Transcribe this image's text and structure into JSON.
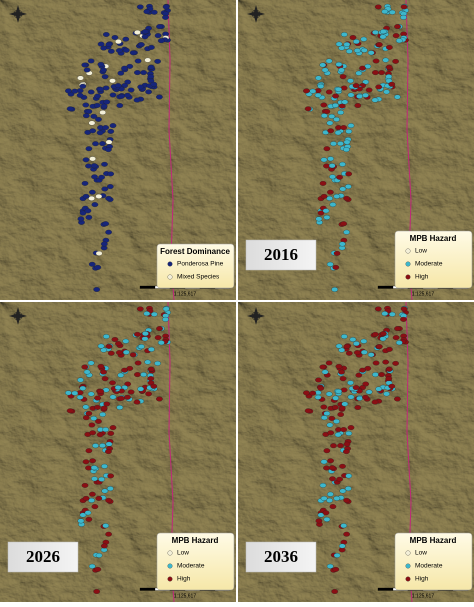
{
  "panels": [
    {
      "legend": {
        "title": "Forest Dominance",
        "items": [
          "Ponderosa Pine",
          "Mixed Species"
        ]
      },
      "scale": "1:125,617"
    },
    {
      "year": "2016",
      "legend": {
        "title": "MPB Hazard",
        "items": [
          "Low",
          "Moderate",
          "High"
        ]
      },
      "scale": "1:125,617"
    },
    {
      "year": "2026",
      "legend": {
        "title": "MPB Hazard",
        "items": [
          "Low",
          "Moderate",
          "High"
        ]
      },
      "scale": "1:125,617"
    },
    {
      "year": "2036",
      "legend": {
        "title": "MPB Hazard",
        "items": [
          "Low",
          "Moderate",
          "High"
        ]
      },
      "scale": "1:125,617"
    }
  ]
}
